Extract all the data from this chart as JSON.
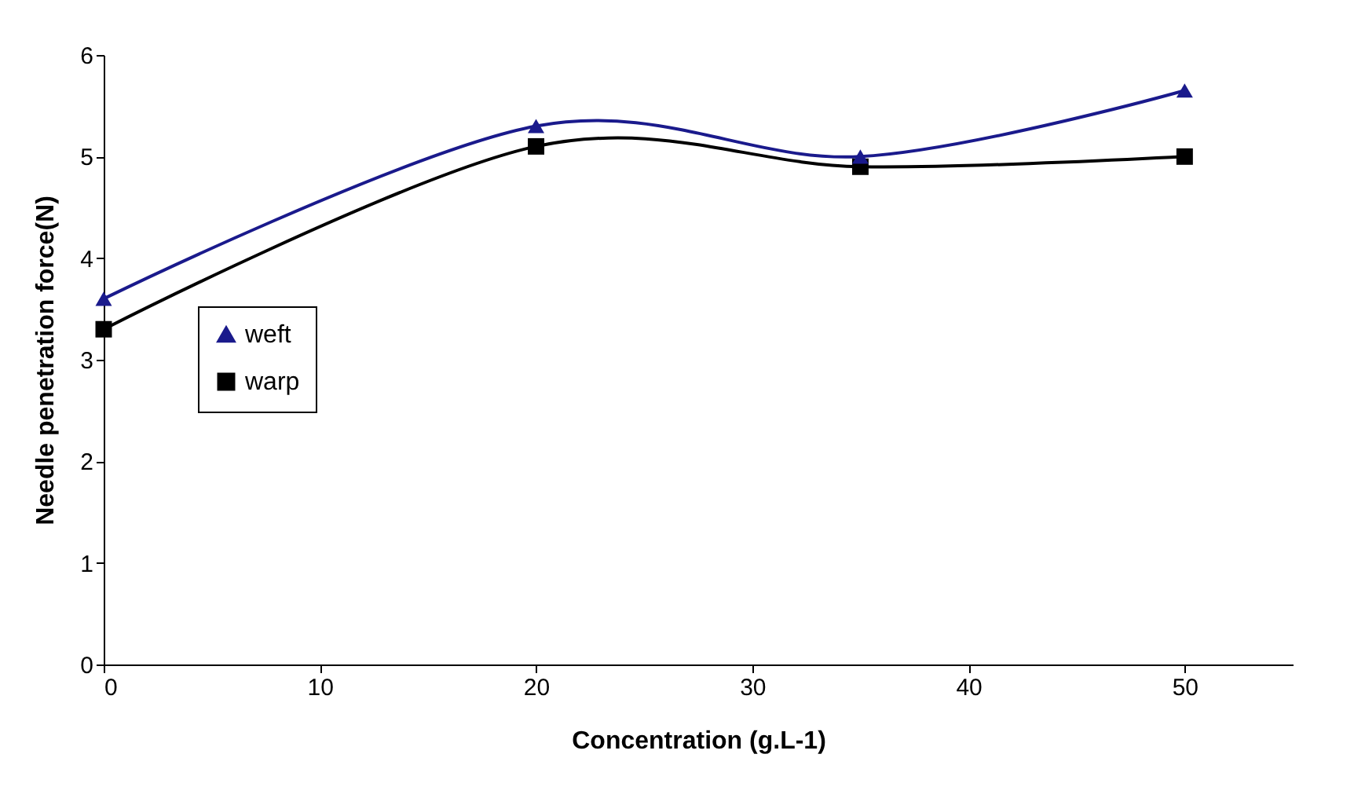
{
  "chart_data": {
    "type": "line",
    "xlabel": "Concentration (g.L-1)",
    "ylabel": "Needle penetration force(N)",
    "x": [
      0,
      20,
      35,
      50
    ],
    "series": [
      {
        "name": "weft",
        "color": "#1a1a8c",
        "values": [
          3.6,
          5.3,
          5.0,
          5.65
        ],
        "marker": "triangle"
      },
      {
        "name": "warp",
        "color": "#000000",
        "values": [
          3.3,
          5.1,
          4.9,
          5.0
        ],
        "marker": "square"
      }
    ],
    "xlim": [
      0,
      55
    ],
    "xticks": [
      0,
      10,
      20,
      30,
      40,
      50
    ],
    "ylim": [
      0,
      6
    ],
    "yticks": [
      0,
      1,
      2,
      3,
      4,
      5,
      6
    ],
    "grid": false,
    "legend": "left",
    "line_style": "solid"
  }
}
